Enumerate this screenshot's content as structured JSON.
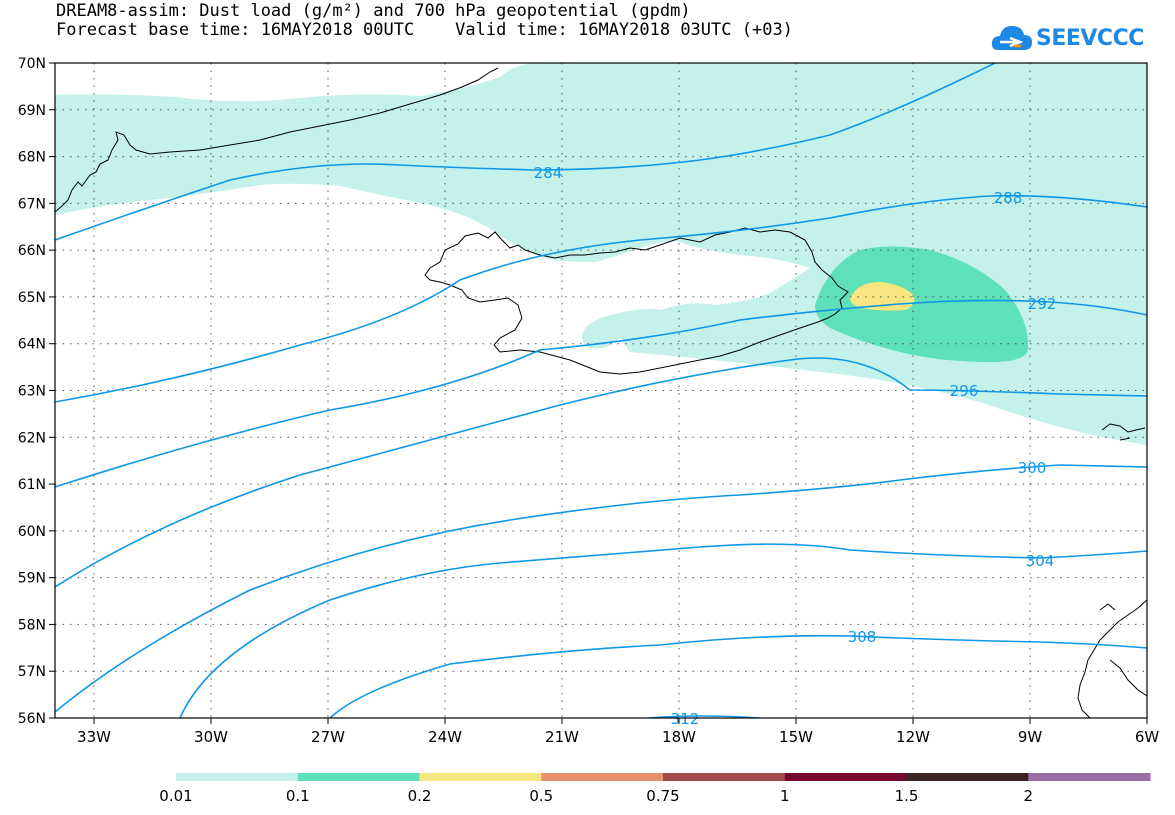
{
  "title": {
    "line1": "DREAM8-assim: Dust load (g/m²) and 700 hPa geopotential (gpdm)",
    "line2": "Forecast base time: 16MAY2018 00UTC    Valid time: 16MAY2018 03UTC (+03)"
  },
  "logo": {
    "text": "SEEVCCC",
    "icon": "cloud-icon"
  },
  "map": {
    "lon_ticks": [
      "33W",
      "30W",
      "27W",
      "24W",
      "21W",
      "18W",
      "15W",
      "12W",
      "9W",
      "6W"
    ],
    "lat_ticks": [
      "70N",
      "69N",
      "68N",
      "67N",
      "66N",
      "65N",
      "64N",
      "63N",
      "62N",
      "61N",
      "60N",
      "59N",
      "58N",
      "57N",
      "56N"
    ],
    "contour_labels": [
      "284",
      "288",
      "292",
      "296",
      "300",
      "304",
      "308",
      "312"
    ],
    "line_color": "#0d97e8",
    "coast_color": "#000000"
  },
  "colorbar": {
    "colors": [
      "#c4f1ea",
      "#5ee0b8",
      "#f7e680",
      "#e8906a",
      "#a24b4a",
      "#760a30",
      "#3a2424",
      "#9b6fa5"
    ],
    "labels": [
      "0.01",
      "0.1",
      "0.2",
      "0.5",
      "0.75",
      "1",
      "1.5",
      "2"
    ]
  }
}
